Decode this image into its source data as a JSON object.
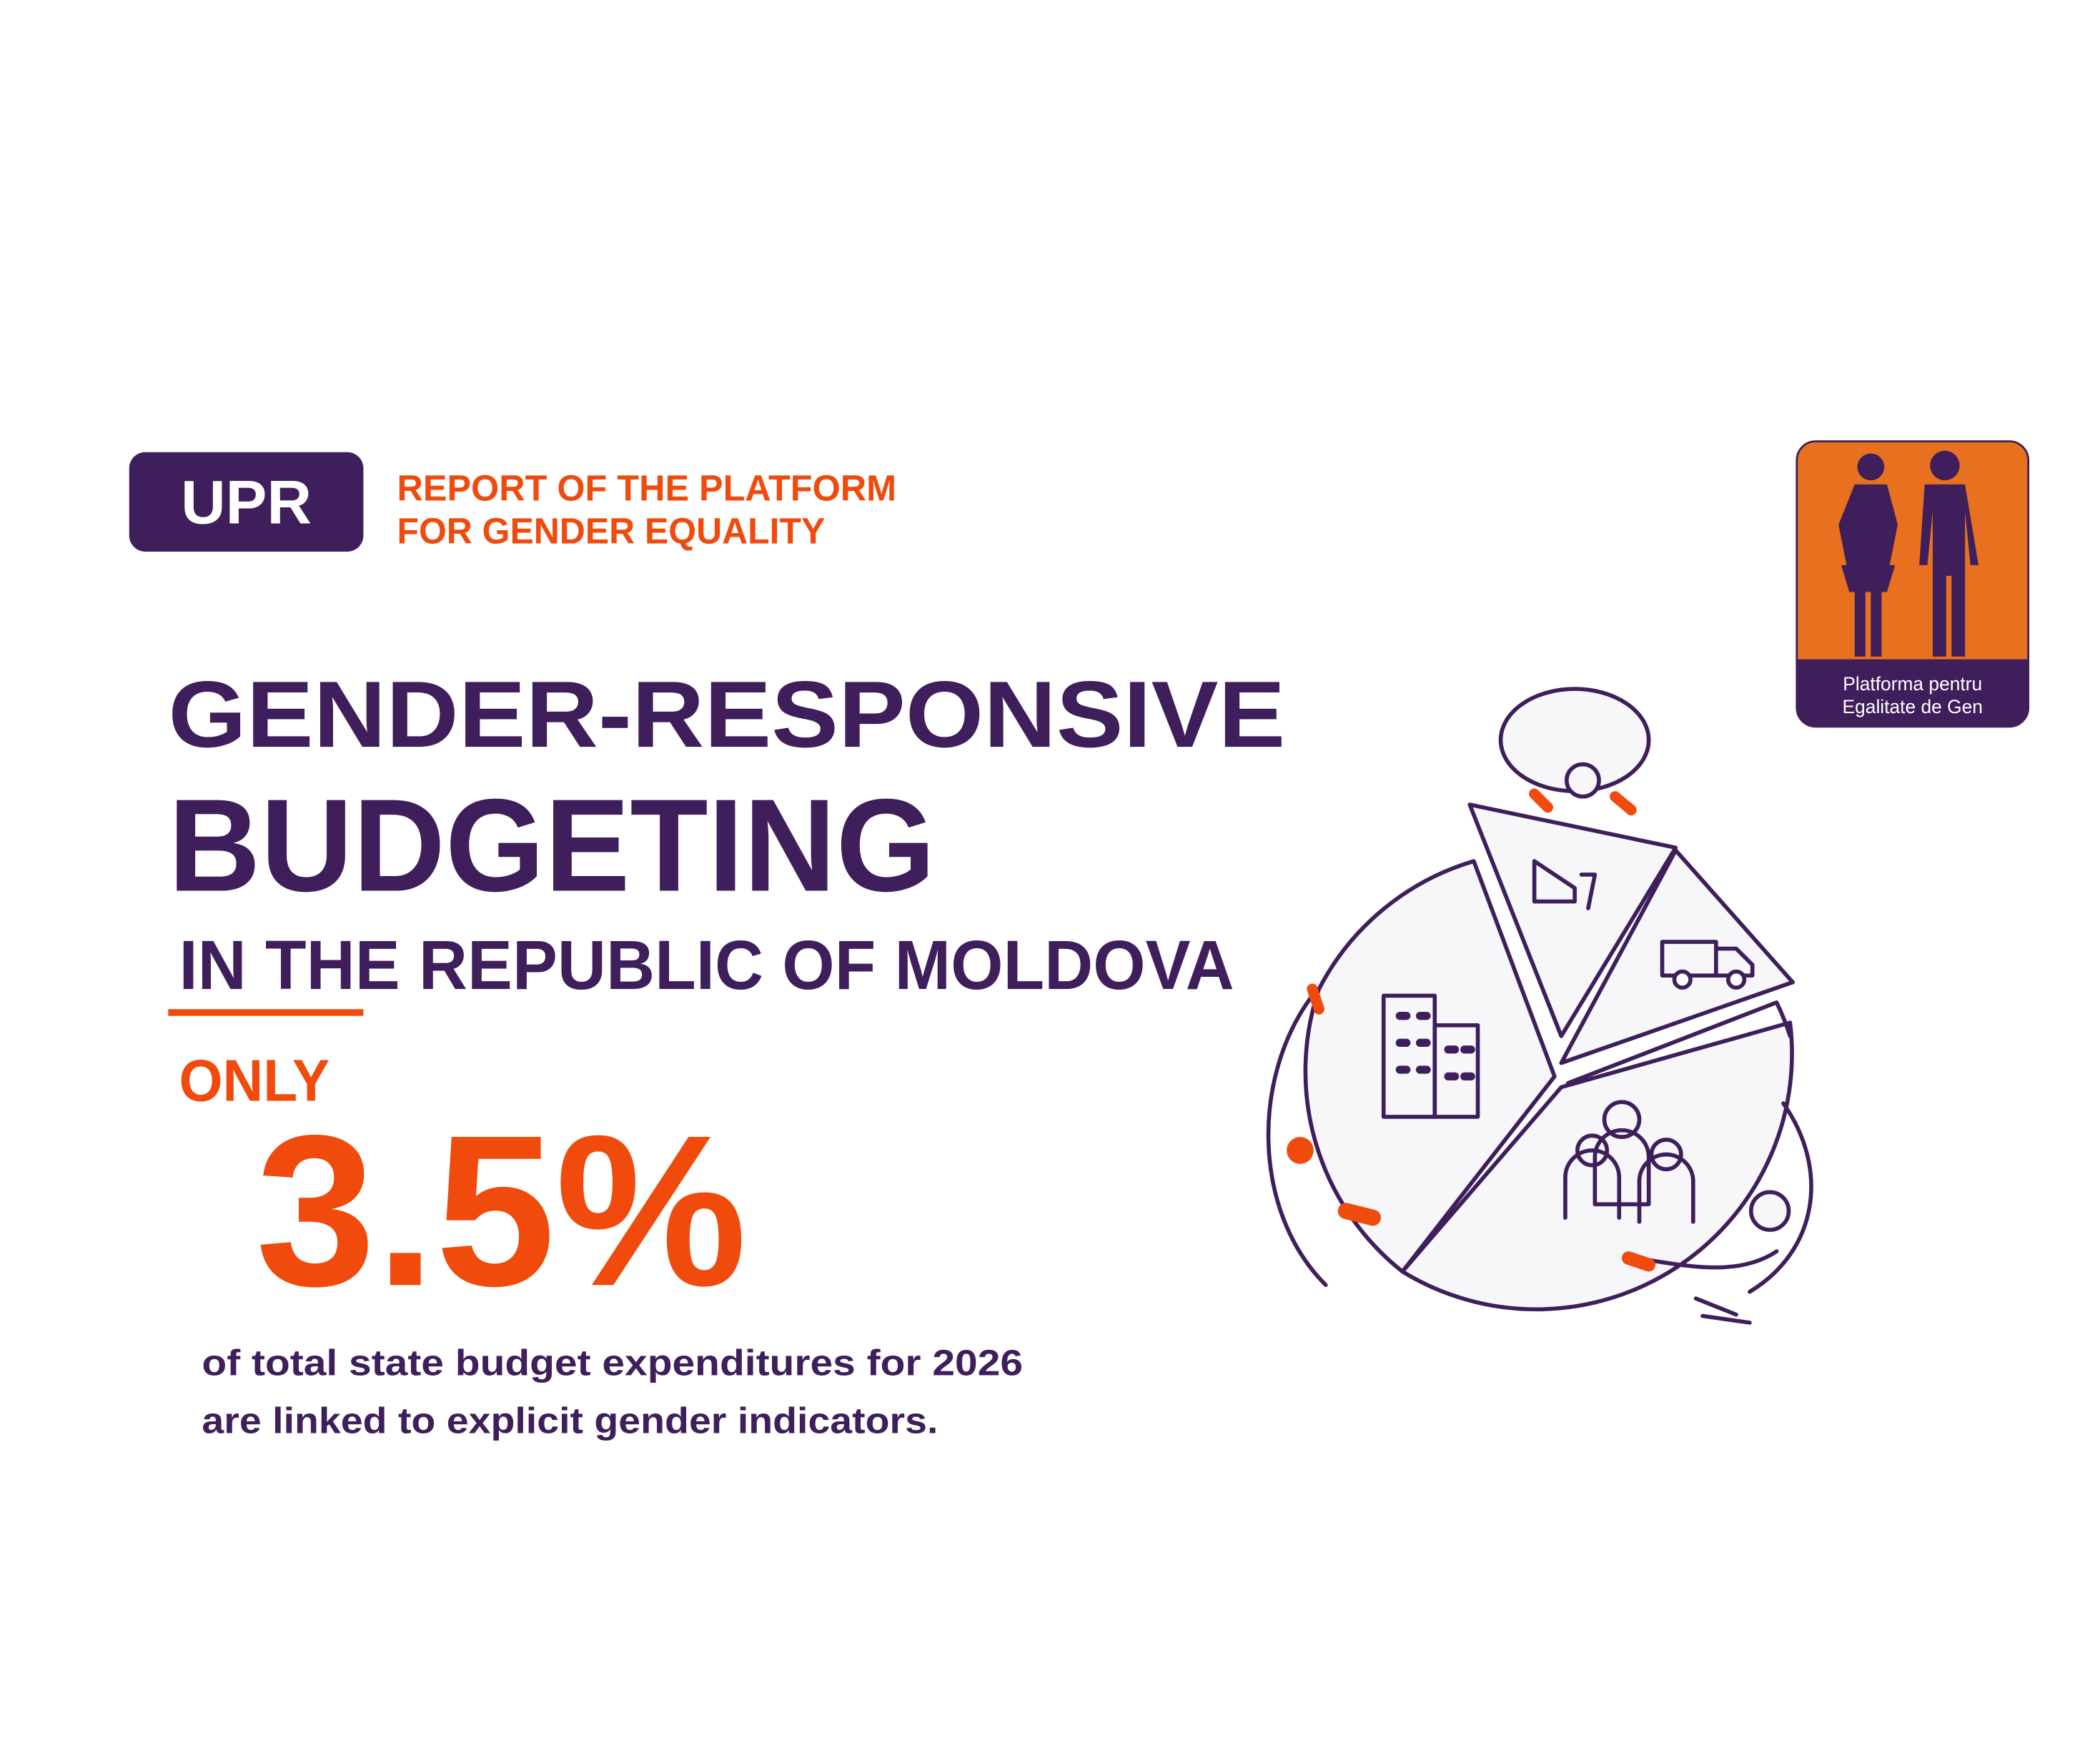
{
  "header": {
    "badge": "UPR",
    "subtitle_lines": [
      "REPORT OF THE PLATFORM",
      "FOR GENDER EQUALITY"
    ]
  },
  "logo": {
    "lines": [
      "Platforma pentru",
      "Egalitate de Gen"
    ]
  },
  "headline": {
    "line1": "GENDER-RESPONSIVE",
    "line2": "BUDGETING",
    "line3": "IN THE REPUBLIC OF MOLDOVA"
  },
  "highlight": {
    "prefix": "ONLY",
    "figure": "3.5%"
  },
  "description": {
    "lines": [
      "of total state budget expenditures for 2026",
      "are linked to explicit gender indicators."
    ]
  }
}
